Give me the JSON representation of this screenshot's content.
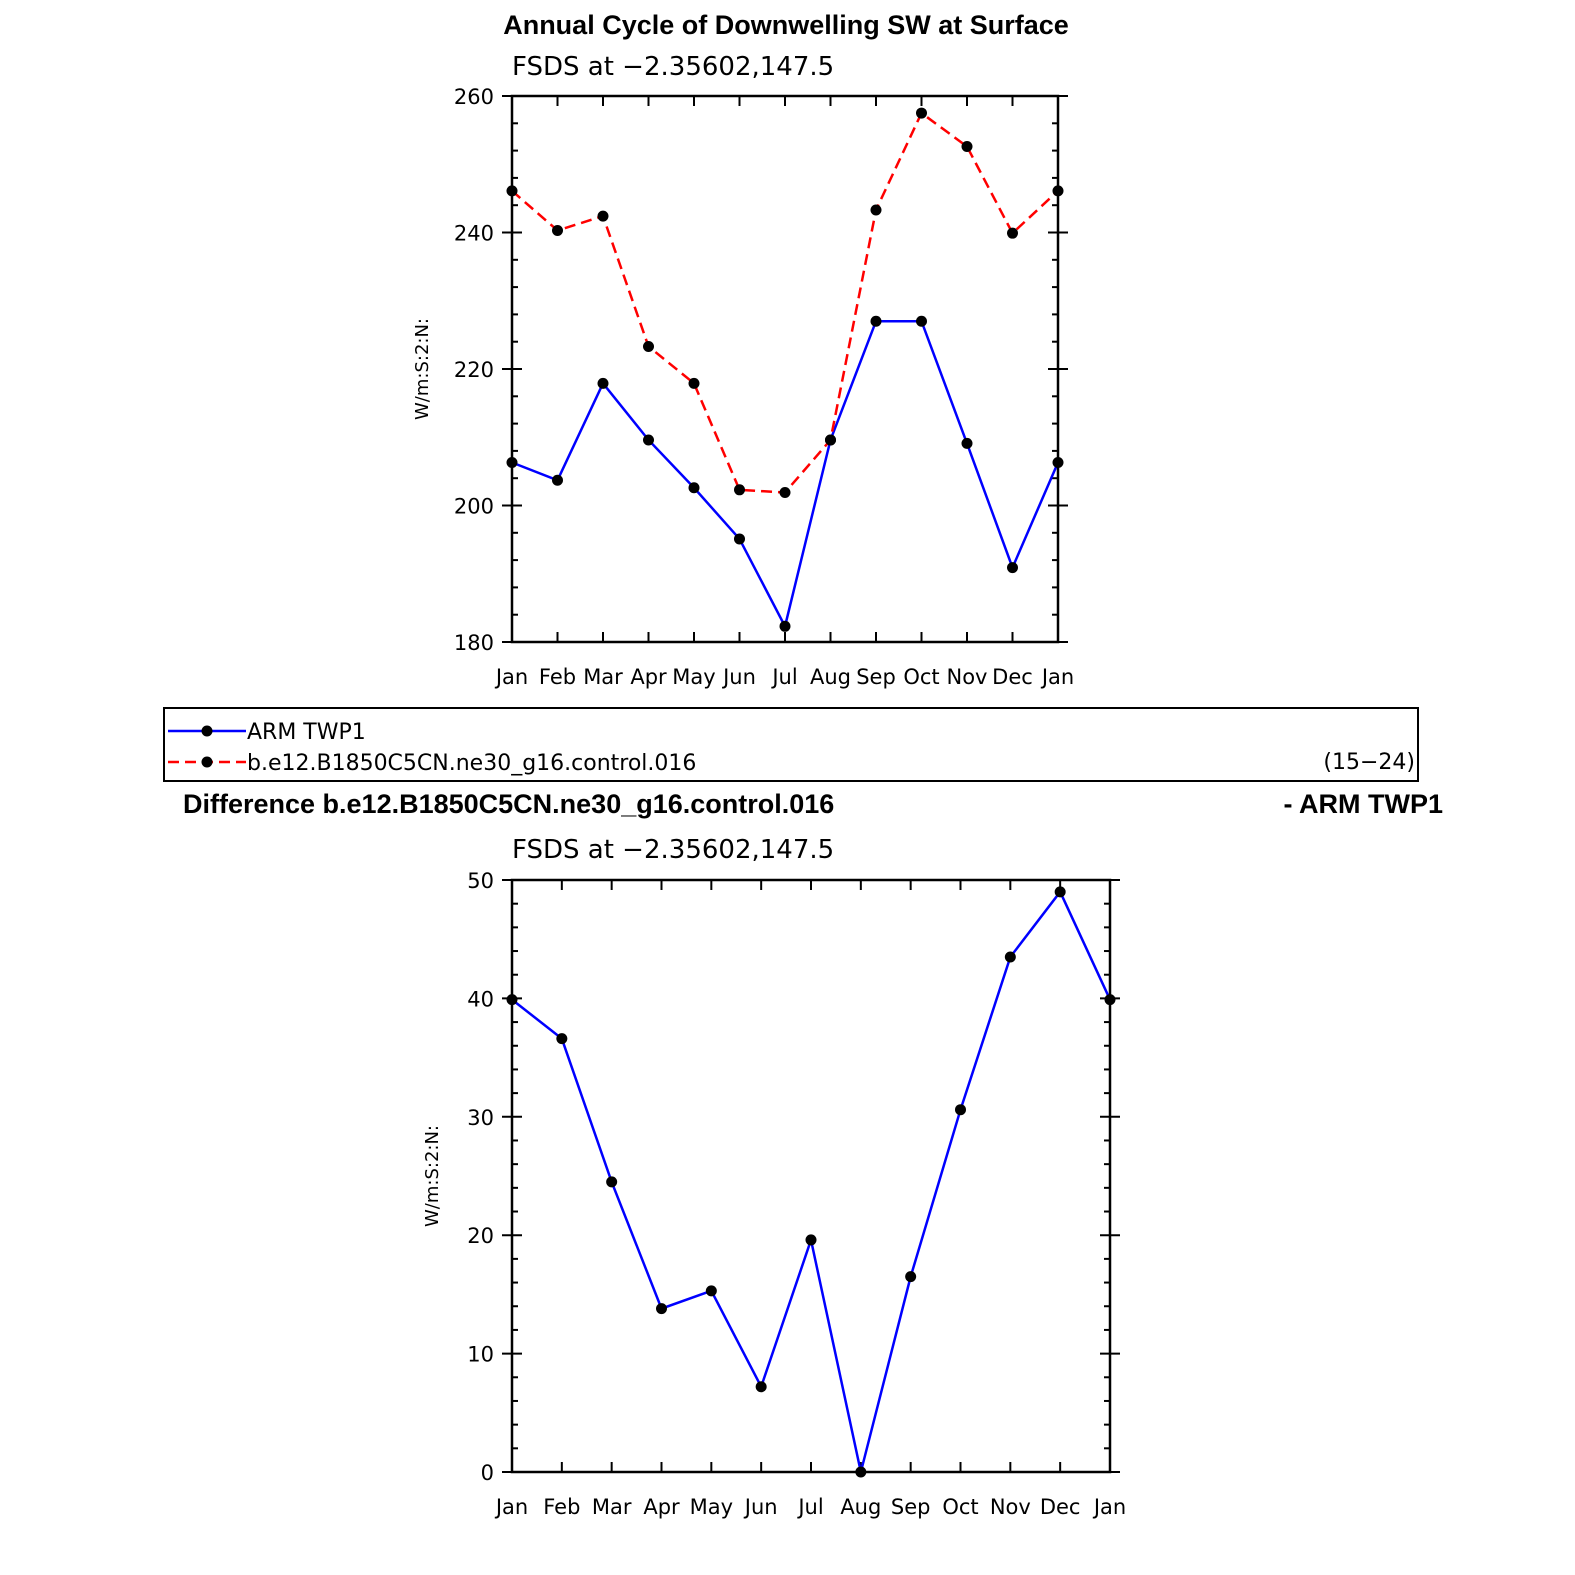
{
  "colors": {
    "obs": "#0000ff",
    "model": "#ff0000",
    "marker": "#000000",
    "axis": "#000000"
  },
  "legend": {
    "entries": [
      {
        "name": "ARM TWP1",
        "color": "#0000ff",
        "dash": "solid"
      },
      {
        "name": "b.e12.B1850C5CN.ne30_g16.control.016",
        "color": "#ff0000",
        "dash": "dashed"
      }
    ],
    "years": "(15−24)"
  },
  "chart_data": [
    {
      "type": "line",
      "title": "Annual Cycle of Downwelling SW at Surface",
      "subtitle": "FSDS at −2.35602,147.5",
      "ylabel": "W/m:S:2:N:",
      "categories": [
        "Jan",
        "Feb",
        "Mar",
        "Apr",
        "May",
        "Jun",
        "Jul",
        "Aug",
        "Sep",
        "Oct",
        "Nov",
        "Dec",
        "Jan"
      ],
      "ylim": [
        180,
        260
      ],
      "yticks": [
        180,
        200,
        220,
        240,
        260
      ],
      "series": [
        {
          "name": "ARM TWP1",
          "color": "#0000ff",
          "dash": "solid",
          "values": [
            206.3,
            203.7,
            217.9,
            209.6,
            202.6,
            195.1,
            182.3,
            209.6,
            227.0,
            227.0,
            209.1,
            190.9,
            206.3
          ]
        },
        {
          "name": "b.e12.B1850C5CN.ne30_g16.control.016",
          "color": "#ff0000",
          "dash": "dashed",
          "values": [
            246.1,
            240.3,
            242.4,
            223.3,
            217.9,
            202.3,
            201.9,
            209.6,
            243.3,
            257.5,
            252.6,
            239.9,
            246.1
          ]
        }
      ]
    },
    {
      "type": "line",
      "title": "Difference b.e12.B1850C5CN.ne30_g16.control.016",
      "title_right": "- ARM TWP1",
      "subtitle": "FSDS at −2.35602,147.5",
      "ylabel": "W/m:S:2:N:",
      "categories": [
        "Jan",
        "Feb",
        "Mar",
        "Apr",
        "May",
        "Jun",
        "Jul",
        "Aug",
        "Sep",
        "Oct",
        "Nov",
        "Dec",
        "Jan"
      ],
      "ylim": [
        0,
        50
      ],
      "yticks": [
        0,
        10,
        20,
        30,
        40,
        50
      ],
      "series": [
        {
          "name": "",
          "color": "#0000ff",
          "dash": "solid",
          "values": [
            39.9,
            36.6,
            24.5,
            13.8,
            15.3,
            7.2,
            19.6,
            0.0,
            16.5,
            30.6,
            43.5,
            49.0,
            39.9
          ]
        }
      ]
    }
  ]
}
